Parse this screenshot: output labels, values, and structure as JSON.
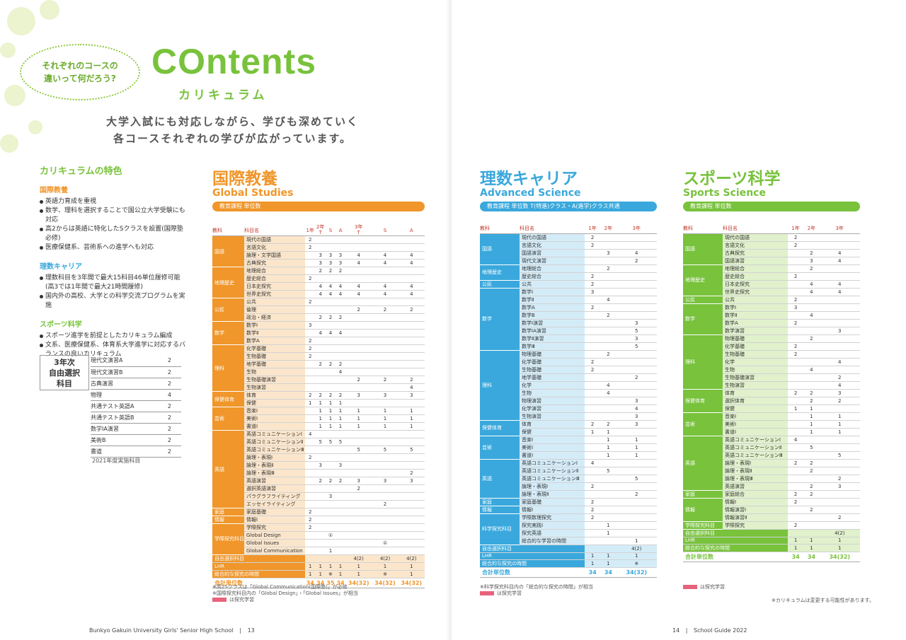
{
  "header": {
    "bubble_line1": "それぞれのコースの",
    "bubble_line2": "違いって何だろう?",
    "title": "COntents",
    "subtitle": "カリキュラム",
    "lead_line1": "大学入試にも対応しながら、学びも深めていく",
    "lead_line2": "各コースそれぞれの学びが広がっています。"
  },
  "features": {
    "heading": "カリキュラムの特色",
    "groups": [
      {
        "name": "国際教養",
        "items": [
          "英語力育成を重視",
          "数学、理科を選択することで国公立大学受験にも対応",
          "高2からは英語に特化したSクラスを設置(国際塾必修)",
          "医療保健系、芸術系への進学へも対応"
        ]
      },
      {
        "name": "理数キャリア",
        "items": [
          "理数科目を3年間で最大15科目46単位履修可能(高3では1年間で最大21時間履修)",
          "国内外の高校、大学との科学交流プログラムを実施"
        ]
      },
      {
        "name": "スポーツ科学",
        "items": [
          "スポーツ進学を前提としたカリキュラム編成",
          "文系、医療保健系、体育系大学進学に対応するバランスの良いカリキュラム"
        ]
      }
    ]
  },
  "elective": {
    "label": "3年次\n自由選択\n科目",
    "rows": [
      [
        "現代文演習A",
        "2"
      ],
      [
        "現代文演習B",
        "2"
      ],
      [
        "古典演習",
        "2"
      ],
      [
        "物理",
        "4"
      ],
      [
        "共通テスト英語A",
        "2"
      ],
      [
        "共通テスト英語B",
        "2"
      ],
      [
        "数学ⅠA演習",
        "2"
      ],
      [
        "美術B",
        "2"
      ],
      [
        "書道",
        "2"
      ]
    ],
    "note": "2021年度実施科目"
  },
  "courses": [
    {
      "jp": "国際教養",
      "en": "Global Studies",
      "bar": "教育課程 単位数",
      "color": "#f0962a",
      "light": "#fbe6cc",
      "headers": [
        "教科",
        "科目名",
        "1年",
        "T",
        "S",
        "A",
        "T",
        "S",
        "A"
      ],
      "year_heads": [
        "2年",
        "3年"
      ],
      "rows": [
        [
          "国語",
          "現代の国語",
          "2",
          "",
          "",
          "",
          "",
          "",
          ""
        ],
        [
          "",
          "言語文化",
          "2",
          "",
          "",
          "",
          "",
          "",
          ""
        ],
        [
          "",
          "論理・文学国語",
          "",
          "3",
          "3",
          "3",
          "4",
          "4",
          "4"
        ],
        [
          "",
          "古典探究",
          "",
          "3",
          "3",
          "3",
          "4",
          "4",
          "4"
        ],
        [
          "地理歴史",
          "地理総合",
          "",
          "2",
          "2",
          "2",
          "",
          "",
          ""
        ],
        [
          "",
          "歴史総合",
          "2",
          "",
          "",
          "",
          "",
          "",
          ""
        ],
        [
          "",
          "日本史探究",
          "",
          "4",
          "4",
          "4",
          "4",
          "4",
          "4"
        ],
        [
          "",
          "世界史探究",
          "",
          "4",
          "4",
          "4",
          "4",
          "4",
          "4"
        ],
        [
          "公民",
          "公共",
          "2",
          "",
          "",
          "",
          "",
          "",
          ""
        ],
        [
          "",
          "倫理",
          "",
          "",
          "",
          "",
          "2",
          "2",
          "2"
        ],
        [
          "",
          "政治・経済",
          "",
          "2",
          "2",
          "2",
          "",
          "",
          ""
        ],
        [
          "数学",
          "数学Ⅰ",
          "3",
          "",
          "",
          "",
          "",
          "",
          ""
        ],
        [
          "",
          "数学Ⅱ",
          "",
          "4",
          "4",
          "4",
          "",
          "",
          ""
        ],
        [
          "",
          "数学A",
          "2",
          "",
          "",
          "",
          "",
          "",
          ""
        ],
        [
          "理科",
          "化学基礎",
          "2",
          "",
          "",
          "",
          "",
          "",
          ""
        ],
        [
          "",
          "生物基礎",
          "2",
          "",
          "",
          "",
          "",
          "",
          ""
        ],
        [
          "",
          "地学基礎",
          "",
          "2",
          "2",
          "2",
          "",
          "",
          ""
        ],
        [
          "",
          "生物",
          "",
          "",
          "",
          "4",
          "",
          "",
          ""
        ],
        [
          "",
          "生物基礎演習",
          "",
          "",
          "",
          "",
          "2",
          "2",
          "2"
        ],
        [
          "",
          "生物演習",
          "",
          "",
          "",
          "",
          "",
          "",
          "4"
        ],
        [
          "保健体育",
          "体育",
          "2",
          "2",
          "2",
          "2",
          "3",
          "3",
          "3"
        ],
        [
          "",
          "保健",
          "1",
          "1",
          "1",
          "1",
          "",
          "",
          ""
        ],
        [
          "芸術",
          "音楽Ⅰ",
          "",
          "1",
          "1",
          "1",
          "1",
          "1",
          "1"
        ],
        [
          "",
          "美術Ⅰ",
          "",
          "1",
          "1",
          "1",
          "1",
          "1",
          "1"
        ],
        [
          "",
          "書道Ⅰ",
          "",
          "1",
          "1",
          "1",
          "1",
          "1",
          "1"
        ],
        [
          "英語",
          "英語コミュニケーションⅠ",
          "4",
          "",
          "",
          "",
          "",
          "",
          ""
        ],
        [
          "",
          "英語コミュニケーションⅡ",
          "",
          "5",
          "5",
          "5",
          "",
          "",
          ""
        ],
        [
          "",
          "英語コミュニケーションⅢ",
          "",
          "",
          "",
          "",
          "5",
          "5",
          "5"
        ],
        [
          "",
          "論理・表現Ⅰ",
          "2",
          "",
          "",
          "",
          "",
          "",
          ""
        ],
        [
          "",
          "論理・表現Ⅱ",
          "",
          "3",
          "",
          "3",
          "",
          "",
          ""
        ],
        [
          "",
          "論理・表現Ⅲ",
          "",
          "",
          "",
          "",
          "",
          "",
          "2"
        ],
        [
          "",
          "英語演習",
          "",
          "2",
          "2",
          "2",
          "3",
          "3",
          "3"
        ],
        [
          "",
          "選択英語演習",
          "",
          "",
          "",
          "",
          "2",
          "",
          ""
        ],
        [
          "",
          "パラグラフライティング",
          "",
          "",
          "3",
          "",
          "",
          "",
          ""
        ],
        [
          "",
          "エッセイライティング",
          "",
          "",
          "",
          "",
          "",
          "2",
          ""
        ],
        [
          "家庭",
          "家庭基礎",
          "2",
          "",
          "",
          "",
          "",
          "",
          ""
        ],
        [
          "情報",
          "情報Ⅰ",
          "2",
          "",
          "",
          "",
          "",
          "",
          ""
        ],
        [
          "学際探究科目",
          "学際探究",
          "2",
          "",
          "",
          "",
          "",
          "",
          ""
        ],
        [
          "",
          "Global Design",
          "",
          "",
          "①",
          "",
          "",
          "",
          ""
        ],
        [
          "",
          "Global Issues",
          "",
          "",
          "",
          "",
          "",
          "①",
          ""
        ],
        [
          "",
          "Global Communication",
          "",
          "",
          "1",
          "",
          "",
          "",
          ""
        ]
      ],
      "bands": [
        [
          "自由選択科目",
          "",
          "",
          "",
          "",
          "4(2)",
          "4(2)",
          "4(2)"
        ],
        [
          "LHR",
          "1",
          "1",
          "1",
          "1",
          "1",
          "1",
          "1"
        ],
        [
          "総合的な探究の時間",
          "1",
          "1",
          "※",
          "1",
          "1",
          "※",
          "1"
        ]
      ],
      "total": [
        "合計単位数",
        "34",
        "34",
        "35",
        "34",
        "34(32)",
        "34(32)",
        "34(32)"
      ],
      "notes": [
        "※高2Sクラスは「Global Communication(国際塾)」が必修",
        "※国際探究科目内の「Global Design」・「Global Issues」が相当",
        "は探究学習"
      ]
    },
    {
      "jp": "理数キャリア",
      "en": "Advanced Science",
      "bar": "教育課程 単位数 T(特進)クラス・A(進学)クラス共通",
      "color": "#3aa8dc",
      "light": "#d4ecf8",
      "headers": [
        "教科",
        "科目名",
        "1年",
        "2年",
        "3年"
      ],
      "rows": [
        [
          "国語",
          "現代の国語",
          "2",
          "",
          ""
        ],
        [
          "",
          "言語文化",
          "2",
          "",
          ""
        ],
        [
          "",
          "国語演習",
          "",
          "3",
          "4"
        ],
        [
          "",
          "現代文演習",
          "",
          "",
          "2"
        ],
        [
          "地理歴史",
          "地理総合",
          "",
          "2",
          ""
        ],
        [
          "",
          "歴史総合",
          "2",
          "",
          ""
        ],
        [
          "公民",
          "公共",
          "2",
          "",
          ""
        ],
        [
          "数学",
          "数学Ⅰ",
          "3",
          "",
          ""
        ],
        [
          "",
          "数学Ⅱ",
          "",
          "4",
          ""
        ],
        [
          "",
          "数学A",
          "2",
          "",
          ""
        ],
        [
          "",
          "数学B",
          "",
          "2",
          ""
        ],
        [
          "",
          "数学Ⅰ演習",
          "",
          "",
          "3"
        ],
        [
          "",
          "数学ⅠA演習",
          "",
          "",
          "5"
        ],
        [
          "",
          "数学Ⅱ演習",
          "",
          "",
          "3"
        ],
        [
          "",
          "数学Ⅲ",
          "",
          "",
          "5"
        ],
        [
          "理科",
          "物理基礎",
          "",
          "2",
          ""
        ],
        [
          "",
          "化学基礎",
          "2",
          "",
          ""
        ],
        [
          "",
          "生物基礎",
          "2",
          "",
          ""
        ],
        [
          "",
          "地学基礎",
          "",
          "",
          "2"
        ],
        [
          "",
          "化学",
          "",
          "4",
          ""
        ],
        [
          "",
          "生物",
          "",
          "4",
          ""
        ],
        [
          "",
          "物理演習",
          "",
          "",
          "3"
        ],
        [
          "",
          "化学演習",
          "",
          "",
          "4"
        ],
        [
          "",
          "生物演習",
          "",
          "",
          "3"
        ],
        [
          "保健体育",
          "体育",
          "2",
          "2",
          "3"
        ],
        [
          "",
          "保健",
          "1",
          "1",
          ""
        ],
        [
          "芸術",
          "音楽Ⅰ",
          "",
          "1",
          "1"
        ],
        [
          "",
          "美術Ⅰ",
          "",
          "1",
          "1"
        ],
        [
          "",
          "書道Ⅰ",
          "",
          "1",
          "1"
        ],
        [
          "英語",
          "英語コミュニケーションⅠ",
          "4",
          "",
          ""
        ],
        [
          "",
          "英語コミュニケーションⅡ",
          "",
          "5",
          ""
        ],
        [
          "",
          "英語コミュニケーションⅢ",
          "",
          "",
          "5"
        ],
        [
          "",
          "論理・表現Ⅰ",
          "2",
          "",
          ""
        ],
        [
          "",
          "論理・表現Ⅱ",
          "",
          "",
          "2"
        ],
        [
          "家庭",
          "家庭基礎",
          "2",
          "",
          ""
        ],
        [
          "情報",
          "情報Ⅰ",
          "2",
          "",
          ""
        ],
        [
          "科学探究科目",
          "学際数理探究",
          "2",
          "",
          ""
        ],
        [
          "",
          "探究実践Ⅰ",
          "",
          "1",
          ""
        ],
        [
          "",
          "探究英語",
          "",
          "1",
          ""
        ],
        [
          "",
          "総合的な学習の時間",
          "",
          "",
          "1"
        ]
      ],
      "bands": [
        [
          "自由選択科目",
          "",
          "",
          "4(2)"
        ],
        [
          "LHR",
          "1",
          "1",
          "1"
        ],
        [
          "総合的な探究の時間",
          "1",
          "1",
          "※"
        ]
      ],
      "total": [
        "合計単位数",
        "34",
        "34",
        "34(32)"
      ],
      "notes": [
        "※科学探究科目内の「総合的な探究の時間」が相当",
        "は探究学習"
      ]
    },
    {
      "jp": "スポーツ科学",
      "en": "Sports Science",
      "bar": "教育課程 単位数",
      "color": "#78c23c",
      "light": "#e0f1cc",
      "headers": [
        "教科",
        "科目名",
        "1年",
        "2年",
        "3年"
      ],
      "rows": [
        [
          "国語",
          "現代の国語",
          "2",
          "",
          ""
        ],
        [
          "",
          "言語文化",
          "2",
          "",
          ""
        ],
        [
          "",
          "古典探究",
          "",
          "2",
          "4"
        ],
        [
          "",
          "国語演習",
          "",
          "3",
          "4"
        ],
        [
          "地理歴史",
          "地理総合",
          "",
          "2",
          ""
        ],
        [
          "",
          "歴史総合",
          "2",
          "",
          ""
        ],
        [
          "",
          "日本史探究",
          "",
          "4",
          "4"
        ],
        [
          "",
          "世界史探究",
          "",
          "4",
          "4"
        ],
        [
          "公民",
          "公共",
          "2",
          "",
          ""
        ],
        [
          "数学",
          "数学Ⅰ",
          "3",
          "",
          ""
        ],
        [
          "",
          "数学Ⅱ",
          "",
          "4",
          ""
        ],
        [
          "",
          "数学A",
          "2",
          "",
          ""
        ],
        [
          "",
          "数学演習",
          "",
          "",
          "3"
        ],
        [
          "理科",
          "物理基礎",
          "",
          "2",
          ""
        ],
        [
          "",
          "化学基礎",
          "2",
          "",
          ""
        ],
        [
          "",
          "生物基礎",
          "2",
          "",
          ""
        ],
        [
          "",
          "化学",
          "",
          "",
          "4"
        ],
        [
          "",
          "生物",
          "",
          "4",
          ""
        ],
        [
          "",
          "生物基礎演習",
          "",
          "",
          "2"
        ],
        [
          "",
          "生物演習",
          "",
          "",
          "4"
        ],
        [
          "保健体育",
          "体育",
          "2",
          "2",
          "3"
        ],
        [
          "",
          "選択体育",
          "",
          "2",
          "2"
        ],
        [
          "",
          "保健",
          "1",
          "1",
          ""
        ],
        [
          "芸術",
          "音楽Ⅰ",
          "",
          "1",
          "1"
        ],
        [
          "",
          "美術Ⅰ",
          "",
          "1",
          "1"
        ],
        [
          "",
          "書道Ⅰ",
          "",
          "1",
          "1"
        ],
        [
          "英語",
          "英語コミュニケーションⅠ",
          "4",
          "",
          ""
        ],
        [
          "",
          "英語コミュニケーションⅡ",
          "",
          "5",
          ""
        ],
        [
          "",
          "英語コミュニケーションⅢ",
          "",
          "",
          "5"
        ],
        [
          "",
          "論理・表現Ⅰ",
          "2",
          "2",
          ""
        ],
        [
          "",
          "論理・表現Ⅱ",
          "",
          "2",
          ""
        ],
        [
          "",
          "論理・表現Ⅲ",
          "",
          "",
          "2"
        ],
        [
          "",
          "英語演習",
          "",
          "2",
          "3"
        ],
        [
          "家庭",
          "家庭総合",
          "2",
          "2",
          ""
        ],
        [
          "情報",
          "情報Ⅰ",
          "2",
          "",
          ""
        ],
        [
          "",
          "情報演習Ⅰ",
          "",
          "2",
          ""
        ],
        [
          "",
          "情報演習Ⅱ",
          "",
          "",
          "2"
        ],
        [
          "学際探究科目",
          "学際探究",
          "2",
          "",
          ""
        ]
      ],
      "bands": [
        [
          "自由選択科目",
          "",
          "",
          "4(2)"
        ],
        [
          "LHR",
          "1",
          "1",
          "1"
        ],
        [
          "総合的な探究の時間",
          "1",
          "1",
          "1"
        ]
      ],
      "total": [
        "合計単位数",
        "34",
        "34",
        "34(32)"
      ],
      "notes": [
        "は探究学習"
      ]
    }
  ],
  "right_note": "※カリキュラムは変更する可能性があります。",
  "footer": {
    "left_school": "Bunkyo Gakuin University Girls' Senior High School",
    "left_page": "13",
    "right_page": "14",
    "right_guide": "School Guide 2022"
  }
}
